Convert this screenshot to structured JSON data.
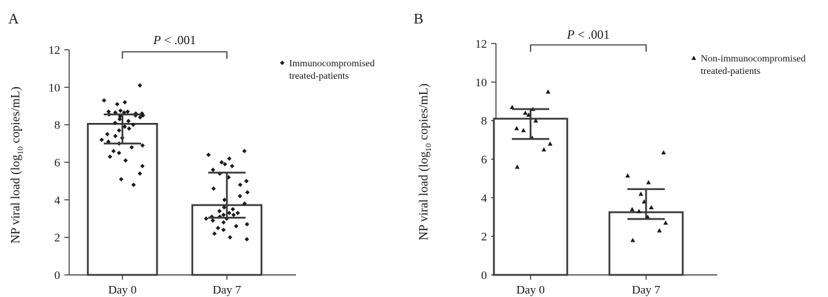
{
  "chart_data": [
    {
      "type": "bar",
      "panel_label": "A",
      "categories": [
        "Day 0",
        "Day 7"
      ],
      "ylabel_main": "NP viral load (log",
      "ylabel_sub": "10",
      "ylabel_tail": " copies/mL)",
      "ylim": [
        0,
        12
      ],
      "yticks": [
        "0",
        "2",
        "4",
        "6",
        "8",
        "10",
        "12"
      ],
      "significance": {
        "p_italic": "P",
        "p_value": " < .001"
      },
      "legend": {
        "marker": "diamond",
        "lines": [
          "Immunocompromised",
          "treated-patients"
        ],
        "placement": "top-right"
      },
      "bars": [
        {
          "category": "Day 0",
          "value": 8.05,
          "error_low": 7.0,
          "error_high": 8.55
        },
        {
          "category": "Day 7",
          "value": 3.72,
          "error_low": 3.05,
          "error_high": 5.45
        }
      ],
      "points": [
        [
          10.1,
          9.3,
          9.2,
          9.1,
          8.75,
          8.7,
          8.7,
          8.65,
          8.65,
          8.6,
          8.6,
          8.55,
          8.5,
          8.5,
          8.45,
          8.4,
          8.3,
          8.2,
          8.1,
          8.0,
          7.9,
          7.8,
          7.7,
          7.5,
          7.4,
          7.3,
          7.2,
          7.1,
          7.0,
          6.9,
          6.8,
          6.6,
          6.5,
          6.3,
          6.1,
          5.8,
          5.4,
          5.1,
          4.8
        ],
        [
          6.6,
          6.4,
          6.2,
          6.0,
          5.9,
          5.8,
          5.6,
          5.4,
          5.2,
          5.0,
          4.8,
          4.6,
          4.4,
          4.2,
          4.0,
          3.8,
          3.6,
          3.5,
          3.4,
          3.3,
          3.3,
          3.2,
          3.2,
          3.1,
          3.1,
          3.0,
          3.0,
          2.9,
          2.8,
          2.7,
          2.6,
          2.5,
          2.4,
          2.2,
          2.0,
          1.9
        ]
      ]
    },
    {
      "type": "bar",
      "panel_label": "B",
      "categories": [
        "Day 0",
        "Day 7"
      ],
      "ylabel_main": "NP viral load (log",
      "ylabel_sub": "10",
      "ylabel_tail": " copies/mL)",
      "ylim": [
        0,
        12
      ],
      "yticks": [
        "0",
        "2",
        "4",
        "6",
        "8",
        "10",
        "12"
      ],
      "significance": {
        "p_italic": "P",
        "p_value": " < .001"
      },
      "legend": {
        "marker": "triangle",
        "lines": [
          "Non-immunocompromised",
          "treated-patients"
        ],
        "placement": "top-right"
      },
      "bars": [
        {
          "category": "Day 0",
          "value": 8.1,
          "error_low": 7.05,
          "error_high": 8.6
        },
        {
          "category": "Day 7",
          "value": 3.25,
          "error_low": 2.9,
          "error_high": 4.45
        }
      ],
      "points": [
        [
          9.5,
          8.7,
          8.6,
          8.4,
          8.3,
          8.0,
          7.6,
          7.5,
          7.1,
          6.8,
          6.5,
          5.6
        ],
        [
          6.35,
          5.15,
          4.8,
          4.2,
          3.8,
          3.5,
          3.4,
          3.3,
          3.0,
          2.7,
          2.3,
          1.8
        ]
      ]
    }
  ]
}
